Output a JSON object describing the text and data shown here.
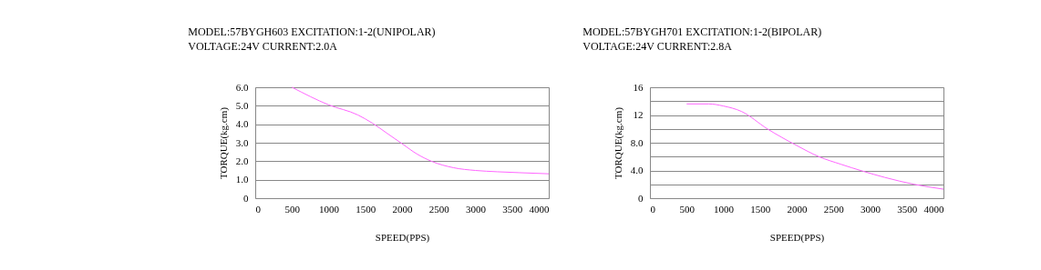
{
  "chart_data": [
    {
      "type": "line",
      "title": "MODEL:57BYGH603  EXCITATION:1-2(UNIPOLAR)",
      "subtitle": "VOLTAGE:24V          CURRENT:2.0A",
      "xlabel": "SPEED(PPS)",
      "ylabel": "TORQUE(kg.cm)",
      "x": [
        500,
        1000,
        1400,
        1600,
        1800,
        2000,
        2200,
        2400,
        2700,
        3000,
        3300,
        3600,
        4000
      ],
      "series": [
        {
          "color": "#ff66ff",
          "values": [
            6.0,
            5.05,
            4.5,
            4.05,
            3.5,
            2.95,
            2.4,
            2.0,
            1.65,
            1.5,
            1.43,
            1.38,
            1.32
          ]
        }
      ],
      "xlim": [
        0,
        4000
      ],
      "xticks": [
        0,
        500,
        1000,
        1500,
        2000,
        2500,
        3000,
        3500,
        4000
      ],
      "ylim": [
        0,
        6
      ],
      "yticks": [
        0,
        {
          "value": 1,
          "label": "1.0"
        },
        {
          "value": 2,
          "label": "2.0"
        },
        {
          "value": 3,
          "label": "3.0"
        },
        {
          "value": 4,
          "label": "4.0"
        },
        {
          "value": 5,
          "label": "5.0"
        },
        {
          "value": 6,
          "label": "6.0"
        }
      ],
      "grid": "y",
      "marker": "none",
      "line_style": "solid"
    },
    {
      "type": "line",
      "title": "MODEL:57BYGH701  EXCITATION:1-2(BIPOLAR)",
      "subtitle": "VOLTAGE:24V          CURRENT:2.8A",
      "xlabel": "SPEED(PPS)",
      "ylabel": "TORQUE(kg.cm)",
      "x": [
        500,
        800,
        1000,
        1250,
        1600,
        2000,
        2300,
        2600,
        2900,
        3200,
        3600,
        4000
      ],
      "series": [
        {
          "color": "#ff66ff",
          "values": [
            13.6,
            13.6,
            13.3,
            12.5,
            10.0,
            7.6,
            6.0,
            4.9,
            3.9,
            3.0,
            2.0,
            1.3
          ]
        }
      ],
      "xlim": [
        0,
        4000
      ],
      "xticks": [
        0,
        500,
        1000,
        1500,
        2000,
        2500,
        3000,
        3500,
        4000
      ],
      "ylim": [
        0,
        16
      ],
      "yticks": [
        0,
        {
          "value": 2,
          "label": null
        },
        {
          "value": 4,
          "label": "4.0"
        },
        {
          "value": 6,
          "label": null
        },
        {
          "value": 8,
          "label": "8.0"
        },
        {
          "value": 10,
          "label": null
        },
        12,
        {
          "value": 14,
          "label": null
        },
        16
      ],
      "grid": "y",
      "marker": "none",
      "line_style": "solid"
    }
  ]
}
